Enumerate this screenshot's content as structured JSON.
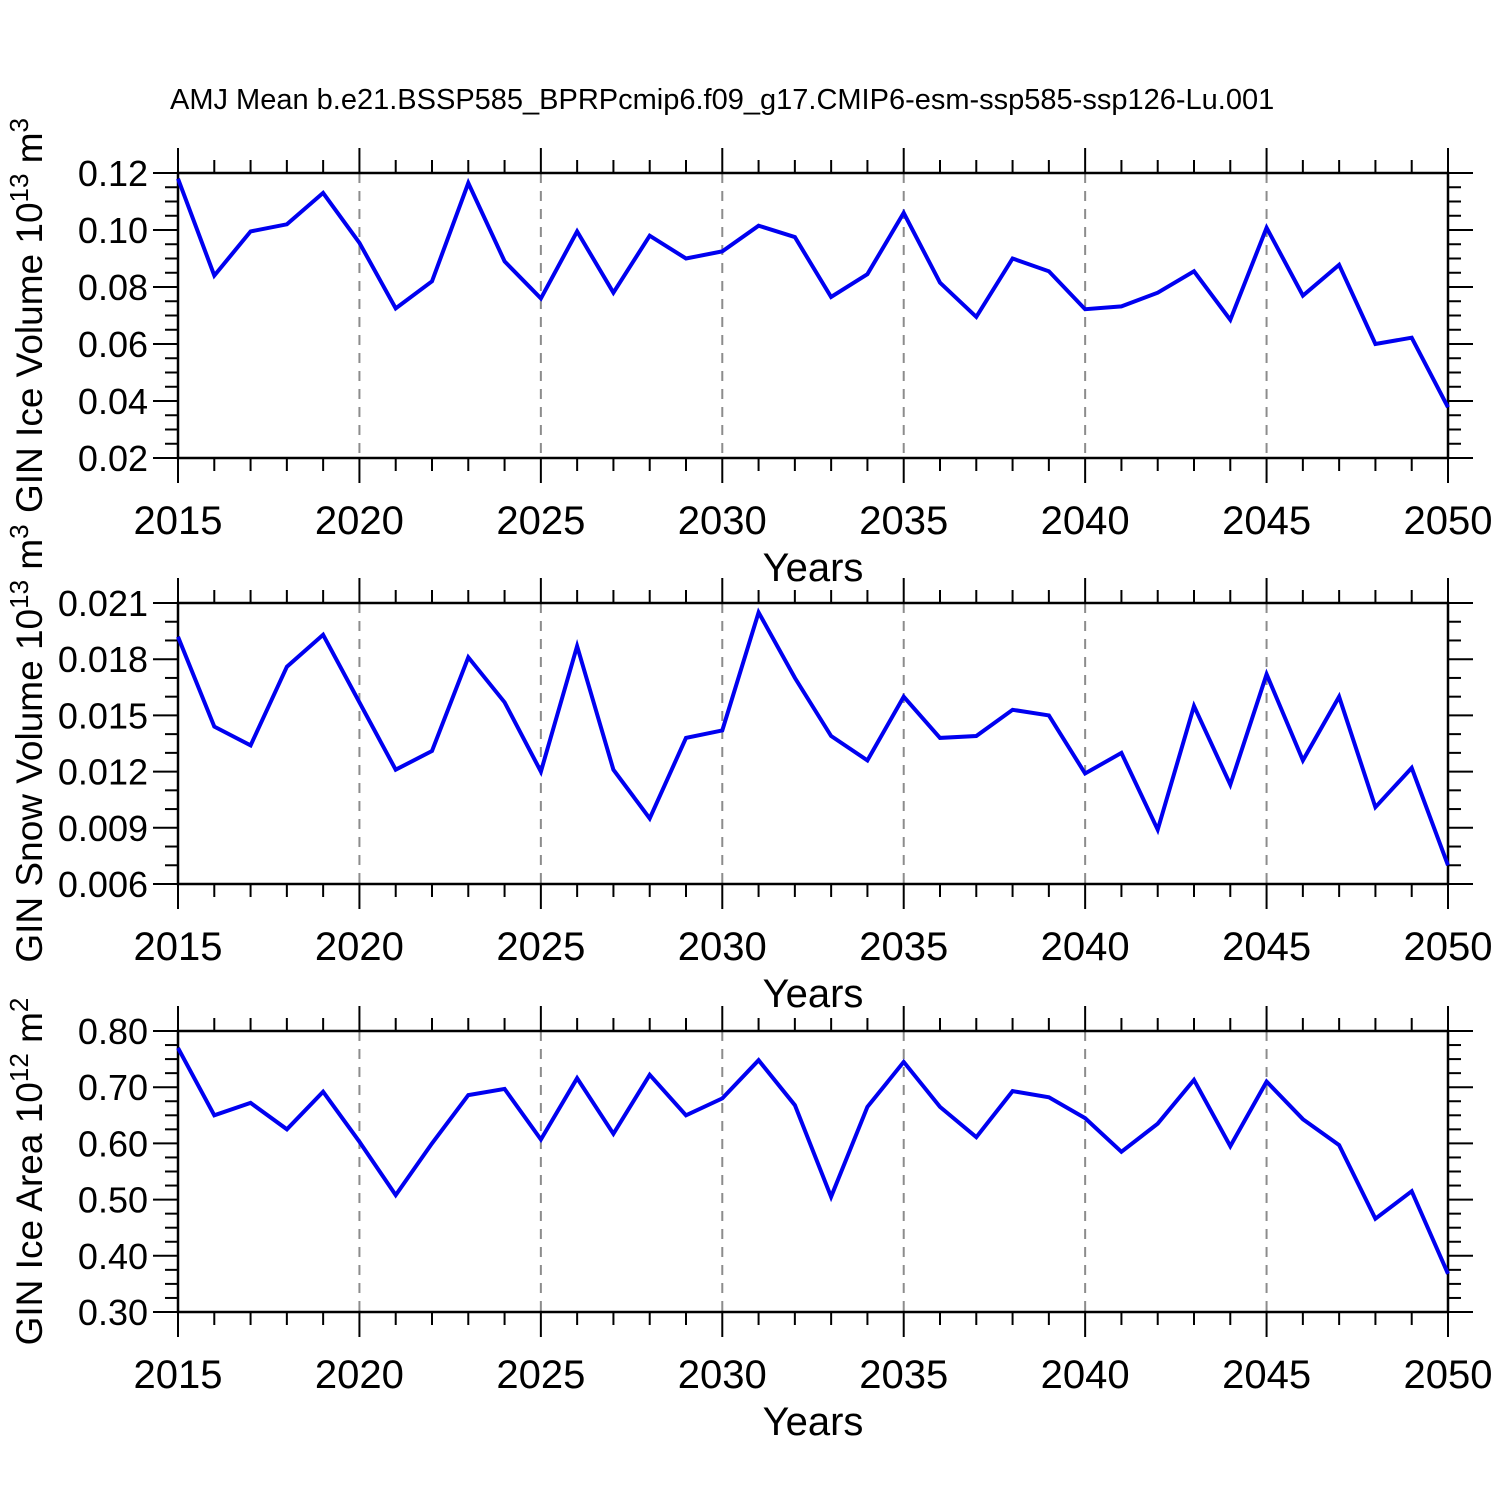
{
  "title": "AMJ Mean b.e21.BSSP585_BPRPcmip6.f09_g17.CMIP6-esm-ssp585-ssp126-Lu.001",
  "colors": {
    "line": "#0000F0",
    "axis": "#000000",
    "gridline": "#8C8C8C",
    "background": "#FFFFFF"
  },
  "x_axis": {
    "label": "Years",
    "range": [
      2015,
      2050
    ],
    "tick_values": [
      2015,
      2020,
      2025,
      2030,
      2035,
      2040,
      2045,
      2050
    ],
    "tick_labels": [
      "2015",
      "2020",
      "2025",
      "2030",
      "2035",
      "2040",
      "2045",
      "2050"
    ],
    "minor_tick_step": 1,
    "gridline_years": [
      2020,
      2025,
      2030,
      2035,
      2040,
      2045
    ],
    "years": [
      2015,
      2016,
      2017,
      2018,
      2019,
      2020,
      2021,
      2022,
      2023,
      2024,
      2025,
      2026,
      2027,
      2028,
      2029,
      2030,
      2031,
      2032,
      2033,
      2034,
      2035,
      2036,
      2037,
      2038,
      2039,
      2040,
      2041,
      2042,
      2043,
      2044,
      2045,
      2046,
      2047,
      2048,
      2049,
      2050
    ]
  },
  "chart_data": [
    {
      "type": "line",
      "name": "gin-ice-volume",
      "ylabel": {
        "text": "GIN Ice Volume 10",
        "sup1": "13",
        "text2": " m",
        "sup2": "3"
      },
      "ylim": [
        0.02,
        0.12
      ],
      "ytick_values": [
        0.02,
        0.04,
        0.06,
        0.08,
        0.1,
        0.12
      ],
      "ytick_labels": [
        "0.02",
        "0.04",
        "0.06",
        "0.08",
        "0.10",
        "0.12"
      ],
      "yminor_step": 0.005,
      "values": [
        0.118,
        0.084,
        0.0995,
        0.102,
        0.113,
        0.0955,
        0.0725,
        0.082,
        0.1165,
        0.089,
        0.076,
        0.0995,
        0.078,
        0.098,
        0.09,
        0.0925,
        0.1015,
        0.0975,
        0.0765,
        0.0845,
        0.106,
        0.0815,
        0.0695,
        0.09,
        0.0855,
        0.0722,
        0.0732,
        0.078,
        0.0855,
        0.0685,
        0.1008,
        0.077,
        0.0878,
        0.06,
        0.0622,
        0.0378
      ]
    },
    {
      "type": "line",
      "name": "gin-snow-volume",
      "ylabel": {
        "text": "GIN Snow Volume 10",
        "sup1": "13",
        "text2": " m",
        "sup2": "3"
      },
      "ylim": [
        0.006,
        0.021
      ],
      "ytick_values": [
        0.006,
        0.009,
        0.012,
        0.015,
        0.018,
        0.021
      ],
      "ytick_labels": [
        "0.006",
        "0.009",
        "0.012",
        "0.015",
        "0.018",
        "0.021"
      ],
      "yminor_step": 0.001,
      "values": [
        0.0192,
        0.0144,
        0.0134,
        0.0176,
        0.0193,
        0.0157,
        0.0121,
        0.0131,
        0.0181,
        0.0157,
        0.012,
        0.0187,
        0.0121,
        0.0095,
        0.0138,
        0.0142,
        0.0205,
        0.017,
        0.0139,
        0.0126,
        0.016,
        0.0138,
        0.0139,
        0.0153,
        0.015,
        0.0119,
        0.013,
        0.0089,
        0.0155,
        0.0113,
        0.0172,
        0.0126,
        0.016,
        0.0101,
        0.0122,
        0.007
      ]
    },
    {
      "type": "line",
      "name": "gin-ice-area",
      "ylabel": {
        "text": "GIN Ice Area 10",
        "sup1": "12",
        "text2": " m",
        "sup2": "2"
      },
      "ylim": [
        0.3,
        0.8
      ],
      "ytick_values": [
        0.3,
        0.4,
        0.5,
        0.6,
        0.7,
        0.8
      ],
      "ytick_labels": [
        "0.30",
        "0.40",
        "0.50",
        "0.60",
        "0.70",
        "0.80"
      ],
      "yminor_step": 0.025,
      "values": [
        0.77,
        0.65,
        0.672,
        0.625,
        0.692,
        0.603,
        0.508,
        0.6,
        0.686,
        0.697,
        0.607,
        0.716,
        0.617,
        0.722,
        0.65,
        0.68,
        0.748,
        0.668,
        0.505,
        0.665,
        0.745,
        0.665,
        0.611,
        0.693,
        0.682,
        0.645,
        0.585,
        0.635,
        0.713,
        0.595,
        0.71,
        0.643,
        0.597,
        0.466,
        0.515,
        0.368
      ]
    }
  ]
}
